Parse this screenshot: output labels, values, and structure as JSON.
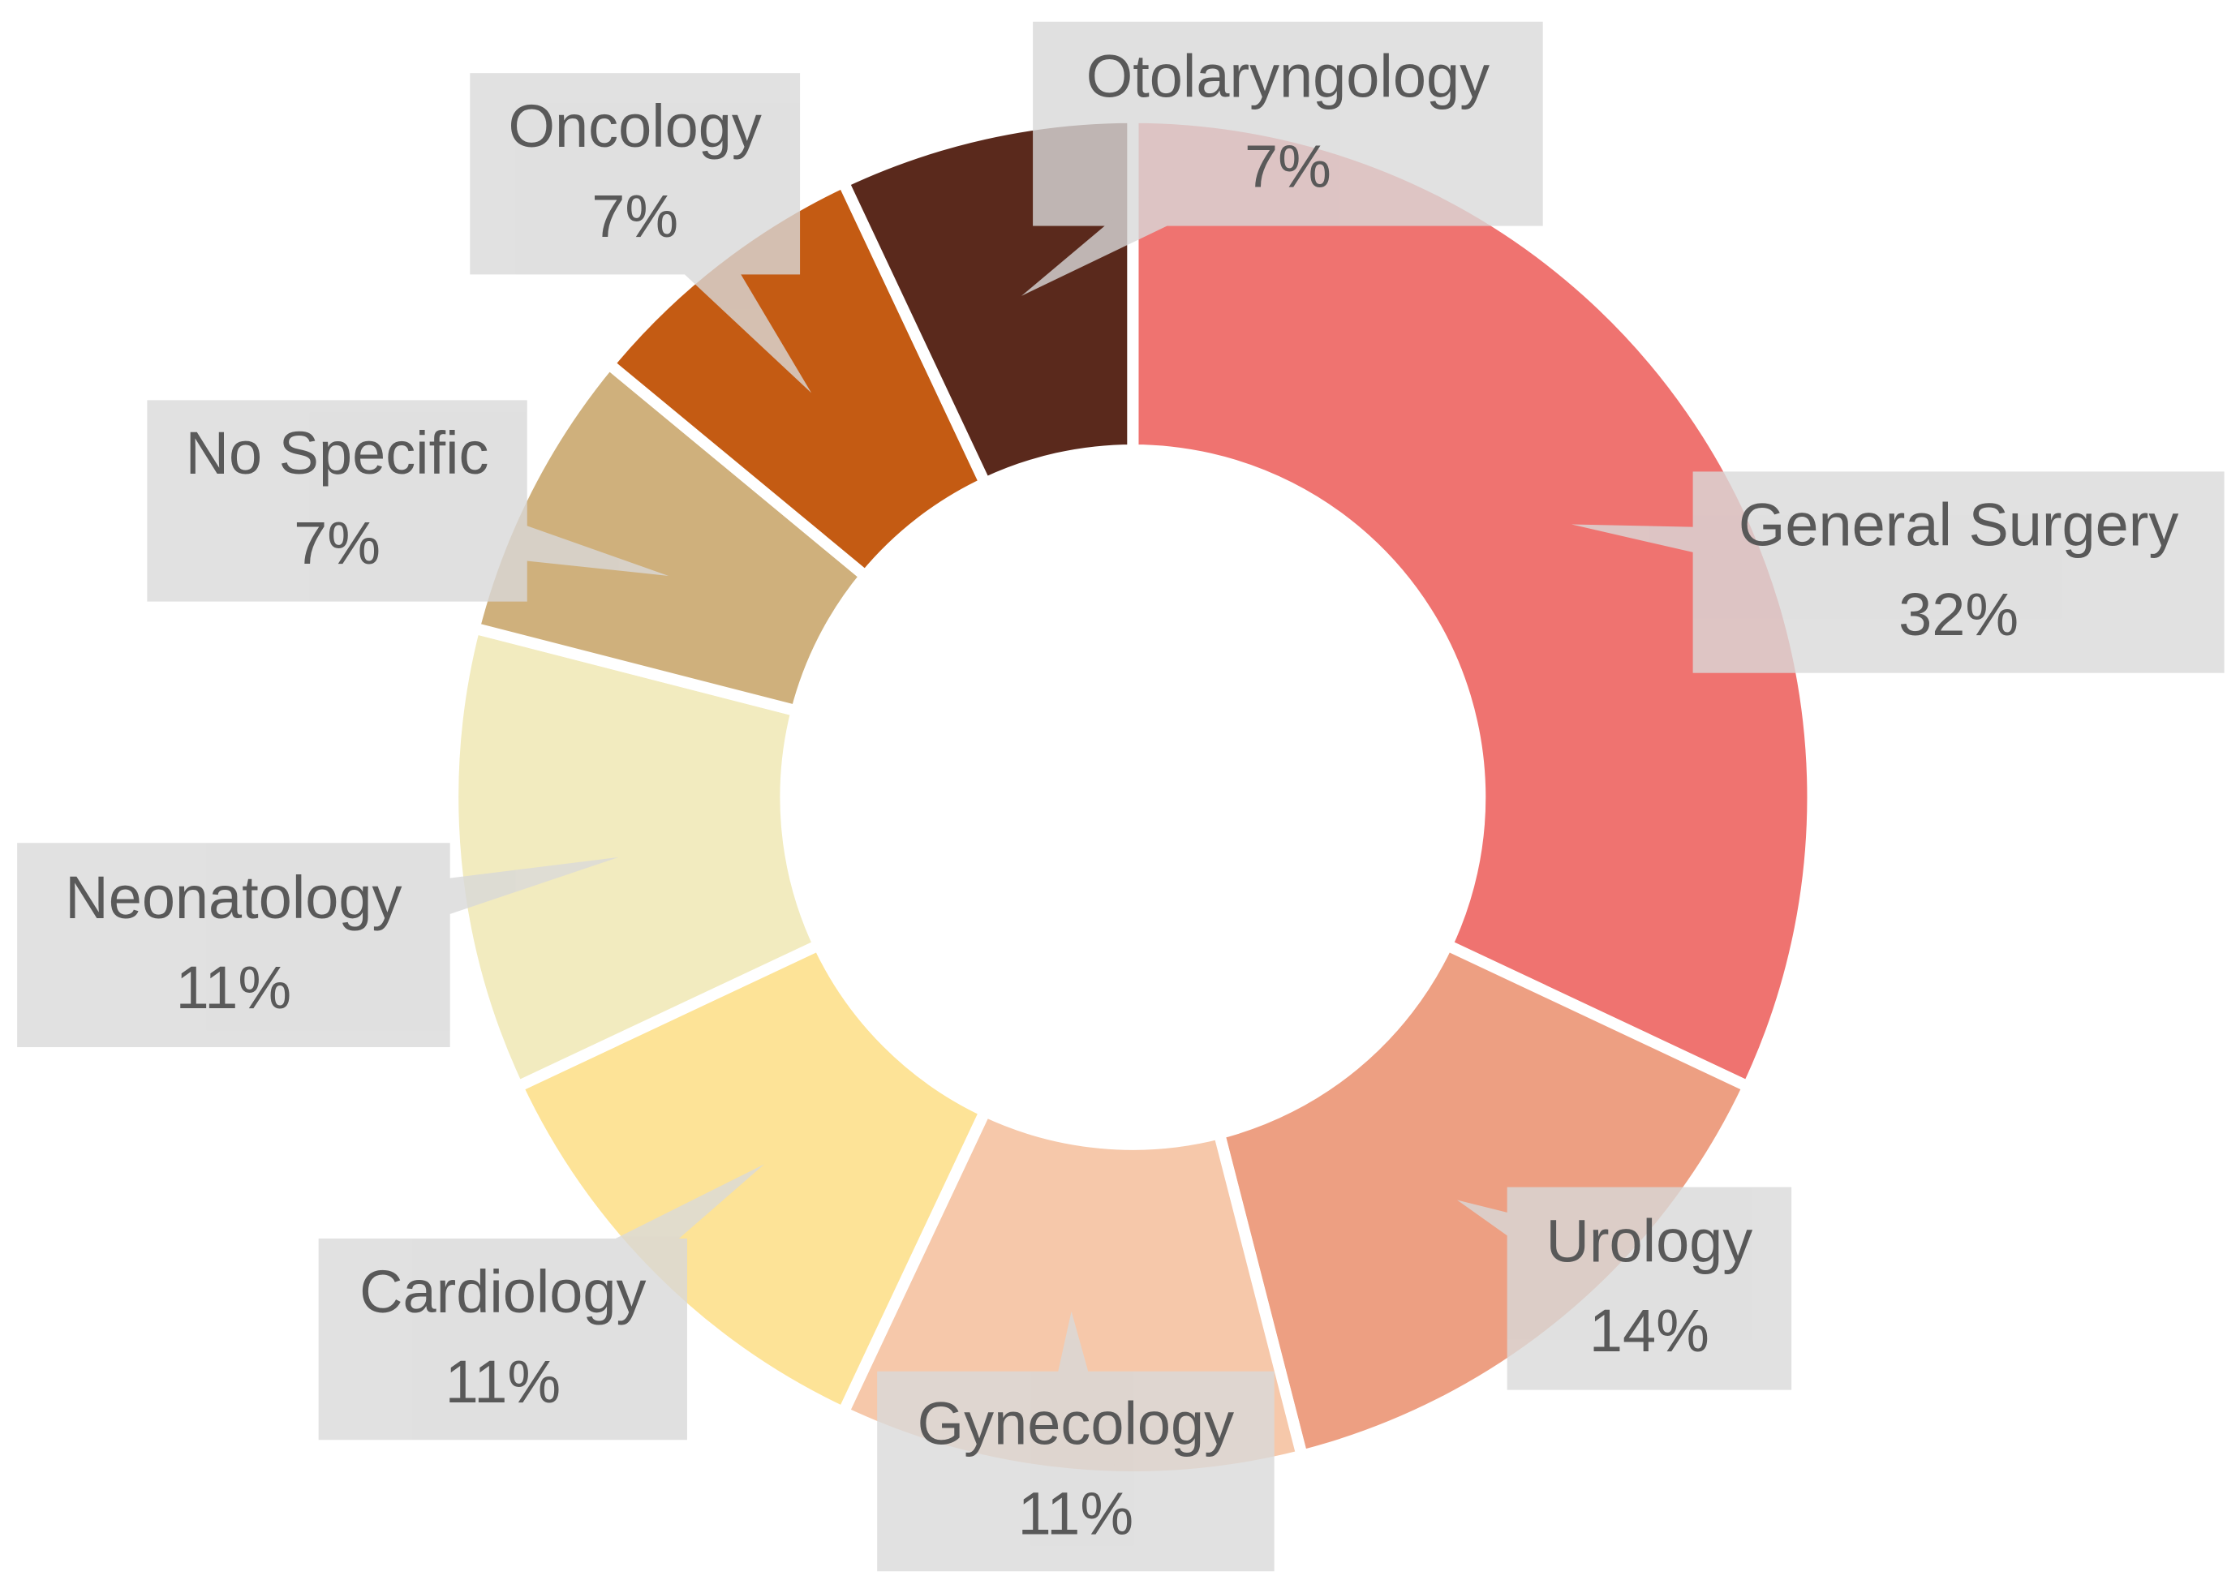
{
  "chart_data": {
    "type": "donut",
    "categories": [
      "General Surgery",
      "Urology",
      "Gynecology",
      "Cardiology",
      "Neonatology",
      "No Specific",
      "Oncology",
      "Otolaryngology"
    ],
    "values": [
      32,
      14,
      11,
      11,
      11,
      7,
      7,
      7
    ],
    "value_labels": [
      "32%",
      "14%",
      "11%",
      "11%",
      "11%",
      "7%",
      "7%",
      "7%"
    ],
    "colors": [
      "#ef7370",
      "#ed9f82",
      "#f6c8aa",
      "#fde397",
      "#f2ebbf",
      "#cfb07c",
      "#c45b13",
      "#5a291c"
    ]
  }
}
